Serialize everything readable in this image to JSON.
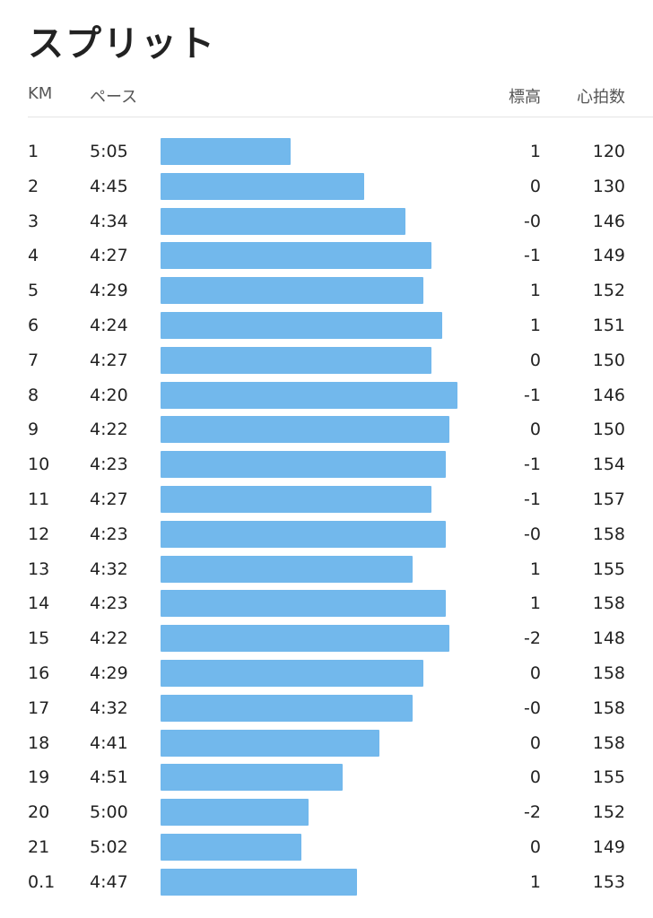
{
  "header": {
    "title": "スプリット"
  },
  "table": {
    "columns": [
      "KM",
      "ペース",
      "標高",
      "心拍数"
    ],
    "rows": [
      [
        "1",
        "5:05",
        "1",
        "120"
      ],
      [
        "2",
        "4:45",
        "0",
        "130"
      ],
      [
        "3",
        "4:34",
        "-0",
        "146"
      ],
      [
        "4",
        "4:27",
        "-1",
        "149"
      ],
      [
        "5",
        "4:29",
        "1",
        "152"
      ],
      [
        "6",
        "4:24",
        "1",
        "151"
      ],
      [
        "7",
        "4:27",
        "0",
        "150"
      ],
      [
        "8",
        "4:20",
        "-1",
        "146"
      ],
      [
        "9",
        "4:22",
        "0",
        "150"
      ],
      [
        "10",
        "4:23",
        "-1",
        "154"
      ],
      [
        "11",
        "4:27",
        "-1",
        "157"
      ],
      [
        "12",
        "4:23",
        "-0",
        "158"
      ],
      [
        "13",
        "4:32",
        "1",
        "155"
      ],
      [
        "14",
        "4:23",
        "1",
        "158"
      ],
      [
        "15",
        "4:22",
        "-2",
        "148"
      ],
      [
        "16",
        "4:29",
        "0",
        "158"
      ],
      [
        "17",
        "4:32",
        "-0",
        "158"
      ],
      [
        "18",
        "4:41",
        "0",
        "158"
      ],
      [
        "19",
        "4:51",
        "0",
        "155"
      ],
      [
        "20",
        "5:00",
        "-2",
        "152"
      ],
      [
        "21",
        "5:02",
        "0",
        "149"
      ],
      [
        "0.1",
        "4:47",
        "1",
        "153"
      ]
    ]
  }
}
